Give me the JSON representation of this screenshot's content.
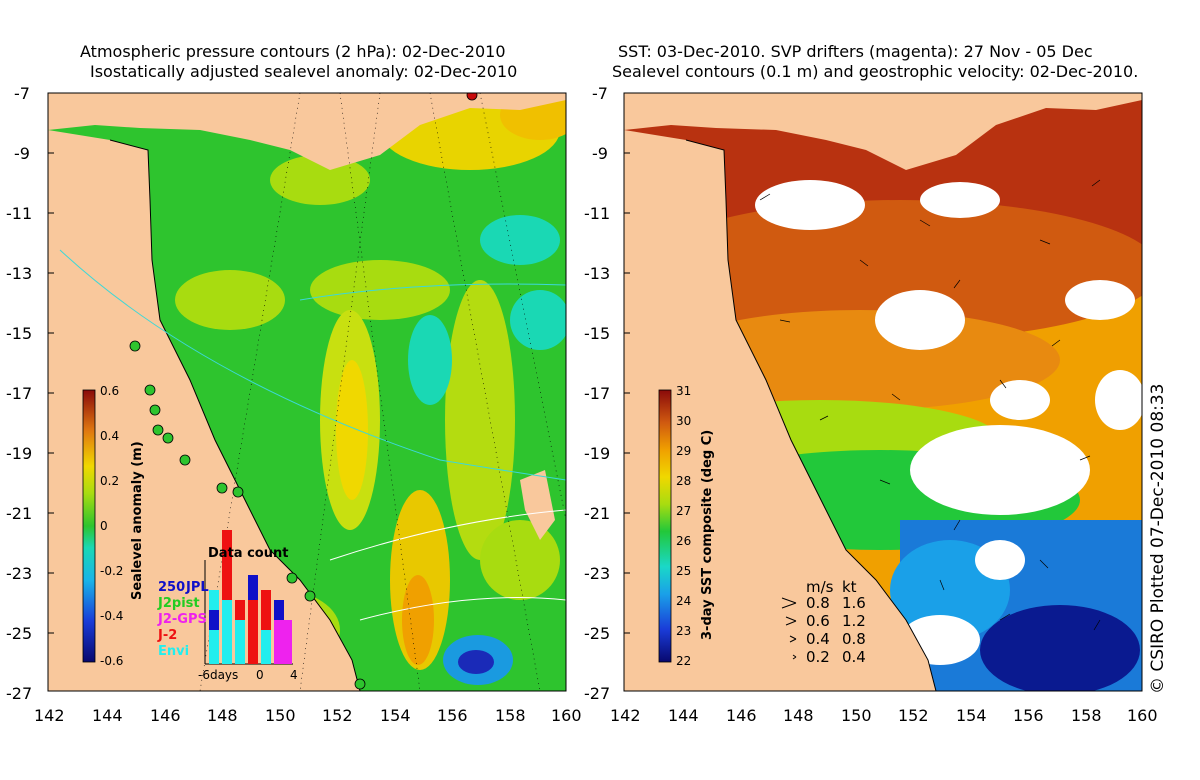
{
  "left_panel": {
    "title_line1": "Atmospheric pressure contours (2 hPa): 02-Dec-2010",
    "title_line2": "Isostatically adjusted sealevel anomaly: 02-Dec-2010",
    "colorbar_label": "Sealevel anomaly (m)",
    "colorbar_ticks": [
      "0.6",
      "0.4",
      "0.2",
      "0",
      "-0.2",
      "-0.4",
      "-0.6"
    ],
    "data_count": {
      "title": "Data count",
      "series": [
        {
          "name": "250",
          "color": "#1010c8"
        },
        {
          "name": "JPL",
          "color": "#1010c8"
        },
        {
          "name": "J2pist",
          "color": "#22cc22"
        },
        {
          "name": "J2-GPS",
          "color": "#ee22ee"
        },
        {
          "name": "J-2",
          "color": "#ee1111"
        },
        {
          "name": "Envi",
          "color": "#22eeee"
        }
      ],
      "x_ticks": [
        "-6days",
        "0",
        "4"
      ]
    }
  },
  "right_panel": {
    "title_line1": "SST: 03-Dec-2010. SVP drifters (magenta): 27 Nov - 05 Dec",
    "title_line2": "Sealevel contours (0.1 m) and geostrophic velocity: 02-Dec-2010.",
    "colorbar_label": "3-day SST composite (deg C)",
    "colorbar_ticks": [
      "31",
      "30",
      "29",
      "28",
      "27",
      "26",
      "25",
      "24",
      "23",
      "22"
    ],
    "velocity_legend": {
      "header_ms": "m/s",
      "header_kt": "kt",
      "rows": [
        {
          "ms": "0.8",
          "kt": "1.6"
        },
        {
          "ms": "0.6",
          "kt": "1.2"
        },
        {
          "ms": "0.4",
          "kt": "0.8"
        },
        {
          "ms": "0.2",
          "kt": "0.4"
        }
      ]
    }
  },
  "axes": {
    "y_ticks": [
      "-7",
      "-9",
      "-11",
      "-13",
      "-15",
      "-17",
      "-19",
      "-21",
      "-23",
      "-25",
      "-27"
    ],
    "x_ticks": [
      "142",
      "144",
      "146",
      "148",
      "150",
      "152",
      "154",
      "156",
      "158",
      "160"
    ],
    "lon_range": [
      142,
      160
    ],
    "lat_range": [
      -27,
      -7
    ]
  },
  "credit": "© CSIRO Plotted 07-Dec-2010 08:33",
  "colors": {
    "land": "#f9c89c",
    "ocean_low": "#2ec42e",
    "ocean_high": "#b8e000",
    "sst_warm": "#a51515",
    "sst_cool": "#1a5ad8"
  }
}
